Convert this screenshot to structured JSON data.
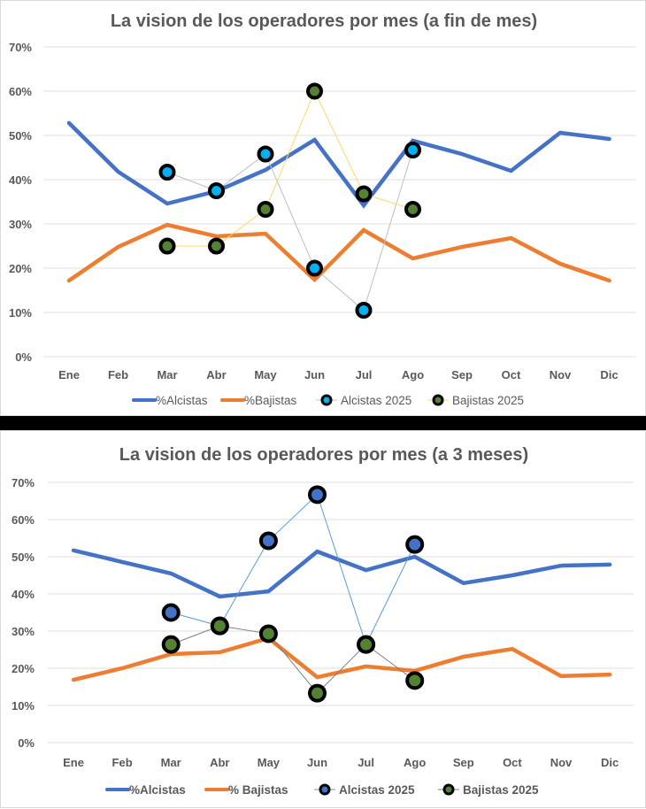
{
  "colors": {
    "alcistas_line": "#4472C4",
    "bajistas_line": "#ED7D31",
    "top_alcistas_2025_marker": "#00B0F0",
    "top_alcistas_2025_connector": "#BFBFBF",
    "top_bajistas_2025_marker": "#548235",
    "top_bajistas_2025_connector": "#FFD966",
    "bottom_alcistas_2025_marker": "#4472C4",
    "bottom_alcistas_2025_connector": "#5B9BD5",
    "bottom_bajistas_2025_marker": "#548235",
    "bottom_bajistas_2025_connector": "#7F7F7F",
    "marker_border": "#000000"
  },
  "chart_data": [
    {
      "type": "line",
      "title": "La vision de los operadores por mes (a fin de mes)",
      "xlabel": "",
      "ylabel": "",
      "categories": [
        "Ene",
        "Feb",
        "Mar",
        "Abr",
        "May",
        "Jun",
        "Jul",
        "Ago",
        "Sep",
        "Oct",
        "Nov",
        "Dic"
      ],
      "ylim": [
        0,
        70
      ],
      "yticks": [
        "0%",
        "10%",
        "20%",
        "30%",
        "40%",
        "50%",
        "60%",
        "70%"
      ],
      "grid": true,
      "legend_position": "bottom",
      "series": [
        {
          "name": "%Alcistas",
          "kind": "line",
          "values": [
            52.8,
            41.8,
            34.6,
            37.4,
            42.2,
            49.0,
            34.2,
            48.8,
            45.8,
            42.0,
            50.6,
            49.2
          ]
        },
        {
          "name": "%Bajistas",
          "kind": "line",
          "values": [
            17.2,
            24.8,
            29.8,
            27.2,
            27.8,
            17.4,
            28.6,
            22.2,
            24.8,
            26.8,
            21.0,
            17.2
          ]
        },
        {
          "name": "Alcistas 2025",
          "kind": "marker",
          "values": [
            null,
            null,
            41.7,
            37.5,
            45.8,
            20.0,
            10.5,
            46.7,
            null,
            null,
            null,
            null
          ]
        },
        {
          "name": "Bajistas 2025",
          "kind": "marker",
          "values": [
            null,
            null,
            25.0,
            25.0,
            33.3,
            60.0,
            36.8,
            33.3,
            null,
            null,
            null,
            null
          ]
        }
      ]
    },
    {
      "type": "line",
      "title": "La vision de los operadores por mes (a 3 meses)",
      "xlabel": "",
      "ylabel": "",
      "categories": [
        "Ene",
        "Feb",
        "Mar",
        "Abr",
        "May",
        "Jun",
        "Jul",
        "Ago",
        "Sep",
        "Oct",
        "Nov",
        "Dic"
      ],
      "ylim": [
        0,
        70
      ],
      "yticks": [
        "0%",
        "10%",
        "20%",
        "30%",
        "40%",
        "50%",
        "60%",
        "70%"
      ],
      "grid": true,
      "legend_position": "bottom",
      "series": [
        {
          "name": "%Alcistas",
          "kind": "line",
          "values": [
            51.7,
            48.6,
            45.5,
            39.3,
            40.7,
            51.4,
            46.4,
            50.0,
            42.9,
            45.0,
            47.6,
            47.9
          ]
        },
        {
          "name": "% Bajistas",
          "kind": "line",
          "values": [
            16.9,
            20.0,
            23.8,
            24.3,
            28.1,
            17.6,
            20.5,
            19.3,
            23.1,
            25.2,
            17.9,
            18.3
          ]
        },
        {
          "name": "Alcistas 2025",
          "kind": "marker",
          "values": [
            null,
            null,
            35.0,
            31.4,
            54.3,
            66.7,
            26.4,
            53.3,
            null,
            null,
            null,
            null
          ]
        },
        {
          "name": "Bajistas 2025",
          "kind": "marker",
          "values": [
            null,
            null,
            26.4,
            31.4,
            29.3,
            13.3,
            26.4,
            16.7,
            null,
            null,
            null,
            null
          ]
        }
      ]
    }
  ]
}
